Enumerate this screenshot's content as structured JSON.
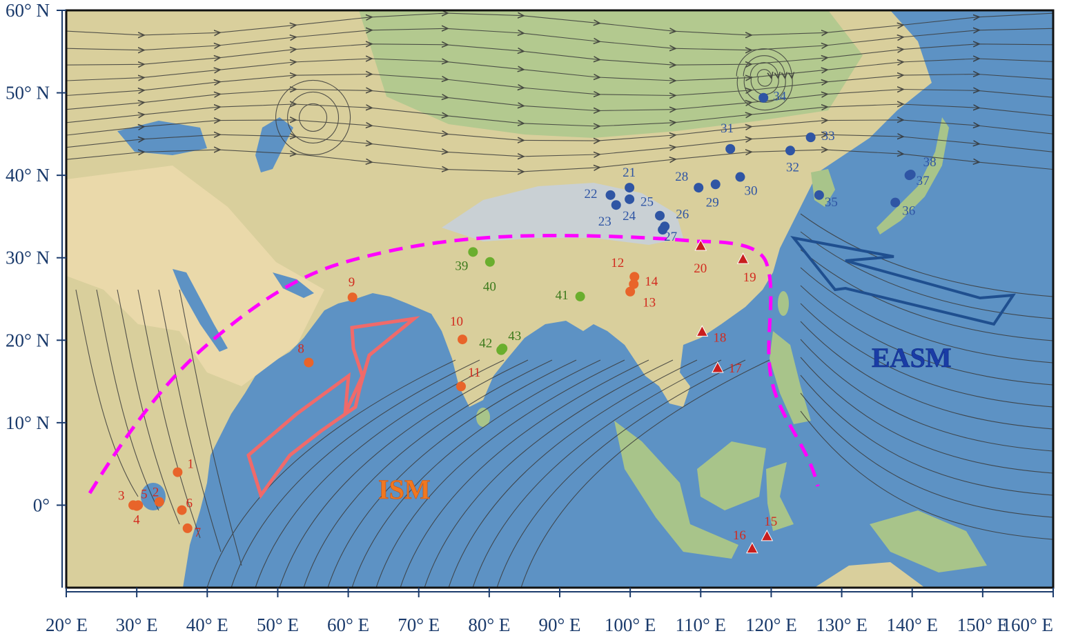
{
  "map": {
    "lon_range": [
      20,
      160
    ],
    "lat_range": [
      -10,
      60
    ],
    "x_axis_labels": [
      "20° E",
      "30° E",
      "40° E",
      "50° E",
      "60° E",
      "70° E",
      "80° E",
      "90° E",
      "100° E",
      "110° E",
      "120° E",
      "130° E",
      "140° E",
      "150° E",
      "160° E"
    ],
    "y_axis_labels": [
      "60° N",
      "50° N",
      "40° N",
      "30° N",
      "20° N",
      "10° N",
      "0°"
    ],
    "colors": {
      "ocean": "#5d92c4",
      "land": "#d9cf9c",
      "land_green": "#a8c48a",
      "desert": "#e8d6a8",
      "plateau": "#c8cfd6",
      "streamline": "#3a3a3a",
      "ism_group": "#e8642a",
      "ism_numbers": "#d22a1e",
      "easm_group": "#2f55a4",
      "triangle_group": "#c81e1e",
      "green_group": "#6aae2e",
      "boundary": "#ff00ff",
      "ism_arrow": "#f06a6a",
      "easm_arrow": "#1f4f8f"
    }
  },
  "monsoons": [
    {
      "key": "ism",
      "label": "ISM",
      "color": "#f07820"
    },
    {
      "key": "easm",
      "label": "EASM",
      "color": "#1a3ca6"
    }
  ],
  "sites": [
    {
      "id": "1",
      "lon": 35.8,
      "lat": 4.0,
      "marker": "circle",
      "group": "africa"
    },
    {
      "id": "2",
      "lon": 33.2,
      "lat": 0.4,
      "marker": "circle",
      "group": "africa"
    },
    {
      "id": "3",
      "lon": 29.5,
      "lat": 0.0,
      "marker": "circle",
      "group": "africa"
    },
    {
      "id": "4",
      "lon": 30.0,
      "lat": -0.1,
      "marker": "circle",
      "group": "africa"
    },
    {
      "id": "5",
      "lon": 30.2,
      "lat": 0.0,
      "marker": "circle",
      "group": "africa"
    },
    {
      "id": "6",
      "lon": 36.4,
      "lat": -0.6,
      "marker": "circle",
      "group": "africa"
    },
    {
      "id": "7",
      "lon": 37.2,
      "lat": -2.8,
      "marker": "circle",
      "group": "africa"
    },
    {
      "id": "8",
      "lon": 54.4,
      "lat": 17.3,
      "marker": "circle",
      "group": "ism"
    },
    {
      "id": "9",
      "lon": 60.6,
      "lat": 25.2,
      "marker": "circle",
      "group": "ism"
    },
    {
      "id": "10",
      "lon": 76.2,
      "lat": 20.1,
      "marker": "circle",
      "group": "ism"
    },
    {
      "id": "11",
      "lon": 76.0,
      "lat": 14.4,
      "marker": "circle",
      "group": "ism"
    },
    {
      "id": "12",
      "lon": 100.6,
      "lat": 27.7,
      "marker": "circle",
      "group": "ism"
    },
    {
      "id": "13",
      "lon": 100.0,
      "lat": 25.9,
      "marker": "circle",
      "group": "ism"
    },
    {
      "id": "14",
      "lon": 100.5,
      "lat": 26.8,
      "marker": "circle",
      "group": "ism"
    },
    {
      "id": "15",
      "lon": 119.4,
      "lat": -3.8,
      "marker": "triangle",
      "group": "tri"
    },
    {
      "id": "16",
      "lon": 117.3,
      "lat": -5.3,
      "marker": "triangle",
      "group": "tri"
    },
    {
      "id": "17",
      "lon": 112.4,
      "lat": 16.6,
      "marker": "triangle",
      "group": "tri"
    },
    {
      "id": "18",
      "lon": 110.2,
      "lat": 21.0,
      "marker": "triangle",
      "group": "tri"
    },
    {
      "id": "19",
      "lon": 116.0,
      "lat": 29.8,
      "marker": "triangle",
      "group": "tri"
    },
    {
      "id": "20",
      "lon": 110.0,
      "lat": 31.4,
      "marker": "triangle",
      "group": "tri"
    },
    {
      "id": "21",
      "lon": 99.9,
      "lat": 38.5,
      "marker": "circle",
      "group": "easm"
    },
    {
      "id": "22",
      "lon": 97.2,
      "lat": 37.6,
      "marker": "circle",
      "group": "easm"
    },
    {
      "id": "23",
      "lon": 98.0,
      "lat": 36.4,
      "marker": "circle",
      "group": "easm"
    },
    {
      "id": "24",
      "lon": 99.9,
      "lat": 37.1,
      "marker": "circle",
      "group": "easm"
    },
    {
      "id": "25",
      "lon": 104.2,
      "lat": 35.1,
      "marker": "circle",
      "group": "easm"
    },
    {
      "id": "26",
      "lon": 104.9,
      "lat": 33.8,
      "marker": "circle",
      "group": "easm"
    },
    {
      "id": "27",
      "lon": 104.6,
      "lat": 33.4,
      "marker": "circle",
      "group": "easm"
    },
    {
      "id": "28",
      "lon": 109.7,
      "lat": 38.5,
      "marker": "circle",
      "group": "easm"
    },
    {
      "id": "29",
      "lon": 112.1,
      "lat": 38.9,
      "marker": "circle",
      "group": "easm"
    },
    {
      "id": "30",
      "lon": 115.6,
      "lat": 39.8,
      "marker": "circle",
      "group": "easm"
    },
    {
      "id": "31",
      "lon": 114.2,
      "lat": 43.2,
      "marker": "circle",
      "group": "easm"
    },
    {
      "id": "32",
      "lon": 122.7,
      "lat": 43.0,
      "marker": "circle",
      "group": "easm"
    },
    {
      "id": "33",
      "lon": 125.6,
      "lat": 44.6,
      "marker": "circle",
      "group": "easm"
    },
    {
      "id": "34",
      "lon": 118.9,
      "lat": 49.4,
      "marker": "circle",
      "group": "easm"
    },
    {
      "id": "35",
      "lon": 126.8,
      "lat": 37.6,
      "marker": "circle",
      "group": "easm"
    },
    {
      "id": "36",
      "lon": 137.6,
      "lat": 36.7,
      "marker": "circle",
      "group": "easm"
    },
    {
      "id": "37",
      "lon": 139.6,
      "lat": 40.0,
      "marker": "circle",
      "group": "easm"
    },
    {
      "id": "38",
      "lon": 139.8,
      "lat": 40.1,
      "marker": "circle",
      "group": "easm"
    },
    {
      "id": "39",
      "lon": 77.7,
      "lat": 30.7,
      "marker": "circle",
      "group": "green"
    },
    {
      "id": "40",
      "lon": 80.1,
      "lat": 29.5,
      "marker": "circle",
      "group": "green"
    },
    {
      "id": "41",
      "lon": 92.9,
      "lat": 25.3,
      "marker": "circle",
      "group": "green"
    },
    {
      "id": "42",
      "lon": 81.7,
      "lat": 18.8,
      "marker": "circle",
      "group": "green"
    },
    {
      "id": "43",
      "lon": 81.9,
      "lat": 19.0,
      "marker": "circle",
      "group": "green"
    }
  ]
}
